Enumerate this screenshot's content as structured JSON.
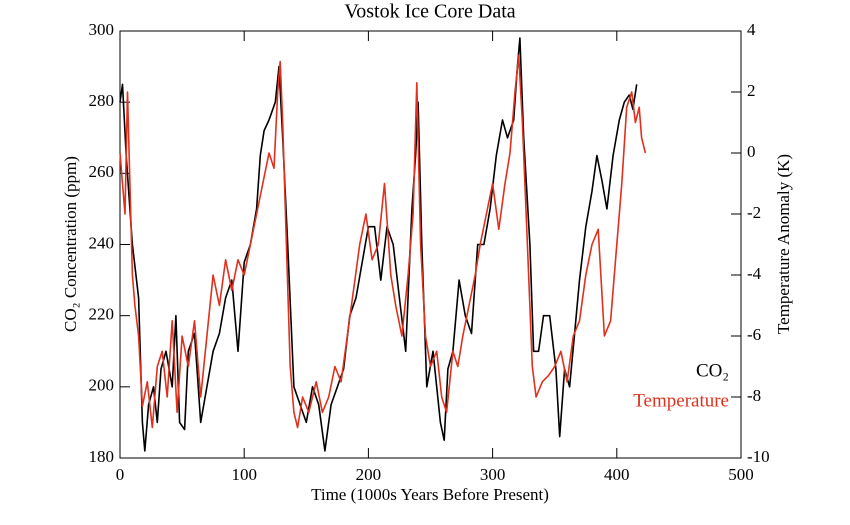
{
  "chart_data": {
    "type": "line",
    "title": "Vostok Ice Core Data",
    "xlabel": "Time (1000s Years Before Present)",
    "ylabel": "CO₂ Concentration (ppm)",
    "y2label": "Temperature Anomaly (K)",
    "xlim": [
      0,
      500
    ],
    "xticks": [
      0,
      100,
      200,
      300,
      400,
      500
    ],
    "ylim": [
      180,
      300
    ],
    "yticks": [
      180,
      200,
      220,
      240,
      260,
      280,
      300
    ],
    "y2lim": [
      -10,
      4
    ],
    "y2ticks": [
      -10,
      -8,
      -6,
      -4,
      -2,
      0,
      2,
      4
    ],
    "legend": "lower right",
    "series": [
      {
        "name": "CO₂",
        "color": "#000000",
        "x": [
          0,
          2,
          5,
          8,
          10,
          15,
          18,
          20,
          23,
          27,
          30,
          33,
          37,
          42,
          45,
          48,
          52,
          55,
          60,
          62,
          65,
          70,
          75,
          80,
          85,
          90,
          95,
          100,
          105,
          110,
          113,
          116,
          120,
          125,
          128,
          131,
          135,
          140,
          145,
          150,
          155,
          160,
          165,
          170,
          175,
          180,
          185,
          190,
          195,
          200,
          205,
          210,
          215,
          220,
          225,
          230,
          235,
          238,
          240,
          243,
          247,
          252,
          255,
          258,
          261,
          264,
          268,
          273,
          278,
          283,
          288,
          293,
          298,
          303,
          308,
          312,
          317,
          320,
          322,
          325,
          330,
          333,
          337,
          341,
          346,
          351,
          354,
          358,
          362,
          366,
          370,
          375,
          380,
          384,
          388,
          392,
          397,
          402,
          406,
          410,
          413,
          416
        ],
        "values": [
          280,
          285,
          265,
          250,
          240,
          225,
          190,
          182,
          195,
          200,
          190,
          205,
          210,
          200,
          220,
          190,
          188,
          210,
          215,
          205,
          190,
          200,
          210,
          215,
          225,
          230,
          210,
          235,
          240,
          250,
          265,
          272,
          275,
          280,
          290,
          270,
          240,
          200,
          195,
          190,
          200,
          195,
          182,
          195,
          200,
          205,
          220,
          225,
          235,
          245,
          245,
          230,
          245,
          240,
          225,
          210,
          250,
          265,
          280,
          240,
          200,
          210,
          200,
          190,
          185,
          205,
          210,
          230,
          220,
          215,
          240,
          240,
          250,
          265,
          275,
          270,
          275,
          290,
          298,
          270,
          240,
          210,
          210,
          220,
          220,
          205,
          186,
          205,
          200,
          215,
          230,
          245,
          255,
          265,
          258,
          250,
          265,
          275,
          280,
          282,
          278,
          285
        ]
      },
      {
        "name": "Temperature",
        "color": "#e0301e",
        "axis": "y2",
        "x": [
          0,
          2,
          4,
          6,
          8,
          10,
          12,
          15,
          18,
          22,
          26,
          30,
          34,
          38,
          42,
          46,
          50,
          55,
          60,
          65,
          70,
          75,
          80,
          85,
          90,
          95,
          100,
          105,
          110,
          115,
          120,
          124,
          127,
          129,
          131,
          134,
          137,
          140,
          143,
          147,
          152,
          158,
          163,
          168,
          173,
          178,
          183,
          188,
          193,
          198,
          203,
          208,
          213,
          218,
          222,
          227,
          232,
          236,
          239,
          242,
          246,
          250,
          255,
          259,
          263,
          268,
          272,
          276,
          281,
          286,
          290,
          295,
          300,
          305,
          310,
          314,
          318,
          321,
          324,
          328,
          332,
          335,
          340,
          345,
          350,
          355,
          360,
          365,
          370,
          375,
          380,
          385,
          390,
          395,
          400,
          404,
          408,
          412,
          415,
          418,
          420,
          423
        ],
        "values": [
          0,
          -1,
          -2,
          2,
          -1,
          -4,
          -5,
          -6,
          -8.3,
          -7.5,
          -9,
          -7,
          -6.5,
          -8,
          -5.5,
          -8.5,
          -6,
          -7,
          -5.5,
          -8,
          -6,
          -4,
          -5,
          -3.5,
          -4.5,
          -3.5,
          -4,
          -3,
          -2,
          -1,
          0,
          -0.5,
          2,
          3,
          1,
          -3,
          -7,
          -8.5,
          -9,
          -8,
          -8.5,
          -7.5,
          -8.5,
          -8,
          -7,
          -7.5,
          -6,
          -4.5,
          -3,
          -2,
          -3.5,
          -3,
          -1,
          -4,
          -5,
          -6,
          -4,
          -2,
          2.3,
          -3,
          -6,
          -7,
          -6.5,
          -8,
          -8.5,
          -6.5,
          -7,
          -6,
          -5,
          -4,
          -3,
          -2,
          -1,
          -2.5,
          -1,
          0,
          2,
          3.2,
          1,
          -3,
          -7,
          -8,
          -7.5,
          -7.3,
          -7,
          -6.5,
          -7.5,
          -6,
          -5.5,
          -4,
          -3,
          -2.5,
          -6,
          -5.5,
          -3,
          -1,
          1.5,
          2,
          1,
          1.5,
          0.5,
          0
        ]
      }
    ]
  }
}
